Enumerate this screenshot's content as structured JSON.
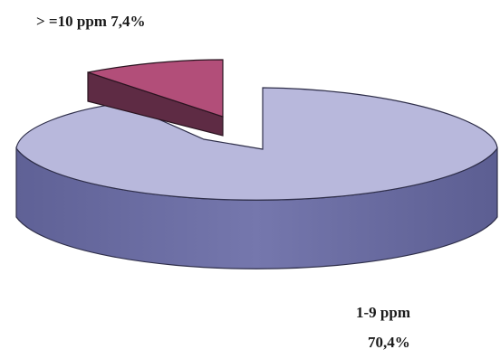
{
  "chart_data": {
    "type": "pie",
    "style": "3d-exploded",
    "slices": [
      {
        "label": "1-9 ppm",
        "value": 70.4,
        "display": "70,4%",
        "color": "#b7b7da",
        "side_color": "#6d6fa3"
      },
      {
        "label": ">=10 ppm",
        "value": 7.4,
        "display": "7,4%",
        "color": "#b24e79",
        "side_color": "#5e2b44"
      }
    ],
    "annotations": {
      "high_label": "> =10 ppm 7,4%",
      "main_label_line1": "1-9 ppm",
      "main_label_line2": "70,4%"
    }
  }
}
